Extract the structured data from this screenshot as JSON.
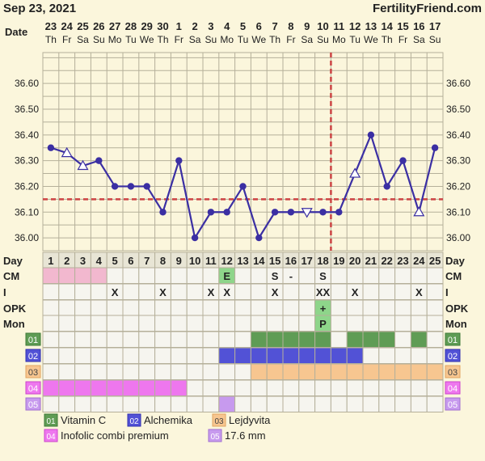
{
  "header": {
    "date": "Sep 23, 2021",
    "site": "FertilityFriend.com"
  },
  "colors": {
    "background": "#fbf6dc",
    "grid_line": "#b5b09a",
    "temperature_line": "#3b2fa3",
    "coverline": "#cc4444",
    "ovulation_line": "#cc4444",
    "vitamin_c": "#5f9c55",
    "alchemika": "#5252d6",
    "lejdyvita": "#f7c690",
    "inofolic": "#ee77ee",
    "size_mm": "#c79aee",
    "cm_pink": "#f2b8cf",
    "fertile_green": "#8ed58a",
    "empty_cell": "#f6f5ef"
  },
  "date_row_label": "Date",
  "dates": [
    "23",
    "24",
    "25",
    "26",
    "27",
    "28",
    "29",
    "30",
    "1",
    "2",
    "3",
    "4",
    "5",
    "6",
    "7",
    "8",
    "9",
    "10",
    "11",
    "12",
    "13",
    "14",
    "15",
    "16",
    "17"
  ],
  "weekdays": [
    "Th",
    "Fr",
    "Sa",
    "Su",
    "Mo",
    "Tu",
    "We",
    "Th",
    "Fr",
    "Sa",
    "Su",
    "Mo",
    "Tu",
    "We",
    "Th",
    "Fr",
    "Sa",
    "Su",
    "Mo",
    "Tu",
    "We",
    "Th",
    "Fr",
    "Sa",
    "Su"
  ],
  "chart_data": {
    "type": "line",
    "title": "",
    "xlabel": "Day",
    "ylabel": "",
    "x": [
      1,
      2,
      3,
      4,
      5,
      6,
      7,
      8,
      9,
      10,
      11,
      12,
      13,
      14,
      15,
      16,
      17,
      18,
      19,
      20,
      21,
      22,
      23,
      24,
      25
    ],
    "series": [
      {
        "values": [
          36.35,
          36.33,
          36.28,
          36.3,
          36.2,
          36.2,
          36.2,
          36.1,
          36.3,
          36.0,
          36.1,
          36.1,
          36.2,
          36.0,
          36.1,
          36.1,
          36.1,
          36.1,
          36.1,
          36.25,
          36.4,
          36.2,
          36.3,
          36.1,
          36.35
        ],
        "markers": [
          "dot",
          "open-triangle",
          "open-triangle",
          "dot",
          "dot",
          "dot",
          "dot",
          "dot",
          "dot",
          "dot",
          "dot",
          "dot",
          "dot",
          "dot",
          "dot",
          "dot",
          "open-triangle-down",
          "dot",
          "dot",
          "open-triangle",
          "dot",
          "dot",
          "dot",
          "open-triangle",
          "dot"
        ]
      }
    ],
    "ylim": [
      35.95,
      36.72
    ],
    "yticks": [
      "36.00",
      "36.10",
      "36.20",
      "36.30",
      "36.40",
      "36.50",
      "36.60"
    ],
    "coverline": 36.15,
    "ovulation_day": 19,
    "grid": true
  },
  "rows": {
    "day_label": "Day",
    "cm": {
      "label": "CM",
      "cells": {
        "1": "",
        "2": "",
        "3": "",
        "4": "",
        "12": "E",
        "15": "S",
        "16": "-",
        "18": "S"
      },
      "colors": {
        "1": "pink",
        "2": "pink",
        "3": "pink",
        "4": "pink",
        "12": "green"
      }
    },
    "i": {
      "label": "I",
      "cells": {
        "5": "X",
        "8": "X",
        "11": "X",
        "12": "X",
        "15": "X",
        "18": "XX",
        "20": "X",
        "24": "X"
      }
    },
    "opk": {
      "label": "OPK",
      "cells": {
        "18": "+"
      },
      "colors": {
        "18": "green"
      }
    },
    "mon": {
      "label": "Mon",
      "cells": {
        "18": "P"
      },
      "colors": {
        "18": "green"
      }
    },
    "meds": [
      {
        "code": "01",
        "days": [
          14,
          15,
          16,
          17,
          18,
          20,
          21,
          22,
          24
        ]
      },
      {
        "code": "02",
        "days": [
          12,
          13,
          14,
          15,
          16,
          17,
          18,
          19,
          20
        ]
      },
      {
        "code": "03",
        "days": [
          14,
          15,
          16,
          17,
          18,
          19,
          20,
          21,
          22,
          23,
          24,
          25
        ]
      },
      {
        "code": "04",
        "days": [
          1,
          2,
          3,
          4,
          5,
          6,
          7,
          8,
          9
        ]
      },
      {
        "code": "05",
        "days": [
          12
        ]
      }
    ]
  },
  "legend": [
    {
      "code": "01",
      "name": "Vitamin C"
    },
    {
      "code": "02",
      "name": "Alchemika"
    },
    {
      "code": "03",
      "name": "Lejdyvita"
    },
    {
      "code": "04",
      "name": "Inofolic combi premium"
    },
    {
      "code": "05",
      "name": "17.6 mm"
    }
  ]
}
